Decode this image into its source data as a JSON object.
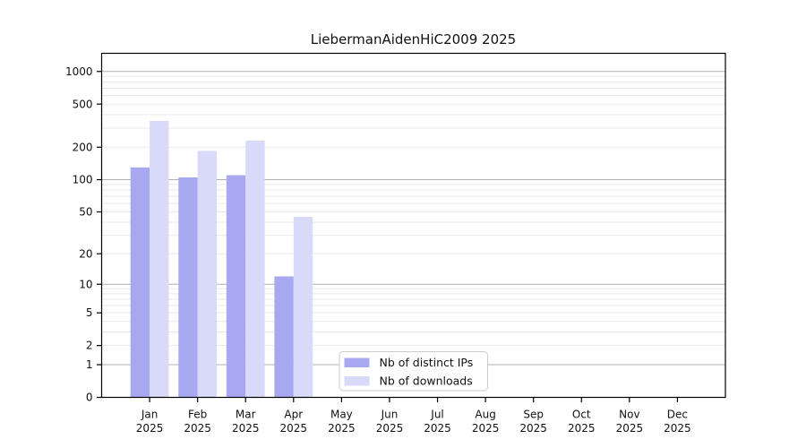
{
  "page": {
    "background": "#ffffff"
  },
  "chart_data": {
    "type": "bar",
    "title": "LiebermanAidenHiC2009 2025",
    "categories": [
      "Jan 2025",
      "Feb 2025",
      "Mar 2025",
      "Apr 2025",
      "May 2025",
      "Jun 2025",
      "Jul 2025",
      "Aug 2025",
      "Sep 2025",
      "Oct 2025",
      "Nov 2025",
      "Dec 2025"
    ],
    "series": [
      {
        "name": "Nb of distinct IPs",
        "color": "#a8a8f0",
        "values": [
          130,
          105,
          110,
          12,
          0,
          0,
          0,
          0,
          0,
          0,
          0,
          0
        ]
      },
      {
        "name": "Nb of downloads",
        "color": "#d9d9fa",
        "values": [
          350,
          185,
          230,
          45,
          0,
          0,
          0,
          0,
          0,
          0,
          0,
          0
        ]
      }
    ],
    "xlabel": "",
    "ylabel": "",
    "y_scale": "log1p",
    "ylim": [
      0,
      1470
    ],
    "y_ticks": [
      0,
      1,
      2,
      5,
      10,
      20,
      50,
      100,
      200,
      500,
      1000
    ],
    "grid": {
      "on": true,
      "major_values": [
        1,
        10,
        100,
        1000
      ],
      "minor_values": [
        2,
        3,
        4,
        5,
        6,
        7,
        8,
        9,
        20,
        30,
        40,
        50,
        60,
        70,
        80,
        90,
        200,
        300,
        400,
        500,
        600,
        700,
        800,
        900
      ],
      "major_color": "#b0b0b0",
      "minor_color": "#e9e9e9"
    },
    "legend": {
      "position": "lower-center-left-inside",
      "border_color": "#cccccc",
      "background": "#ffffff"
    },
    "axis_color": "#000000",
    "text_color": "#111111"
  }
}
